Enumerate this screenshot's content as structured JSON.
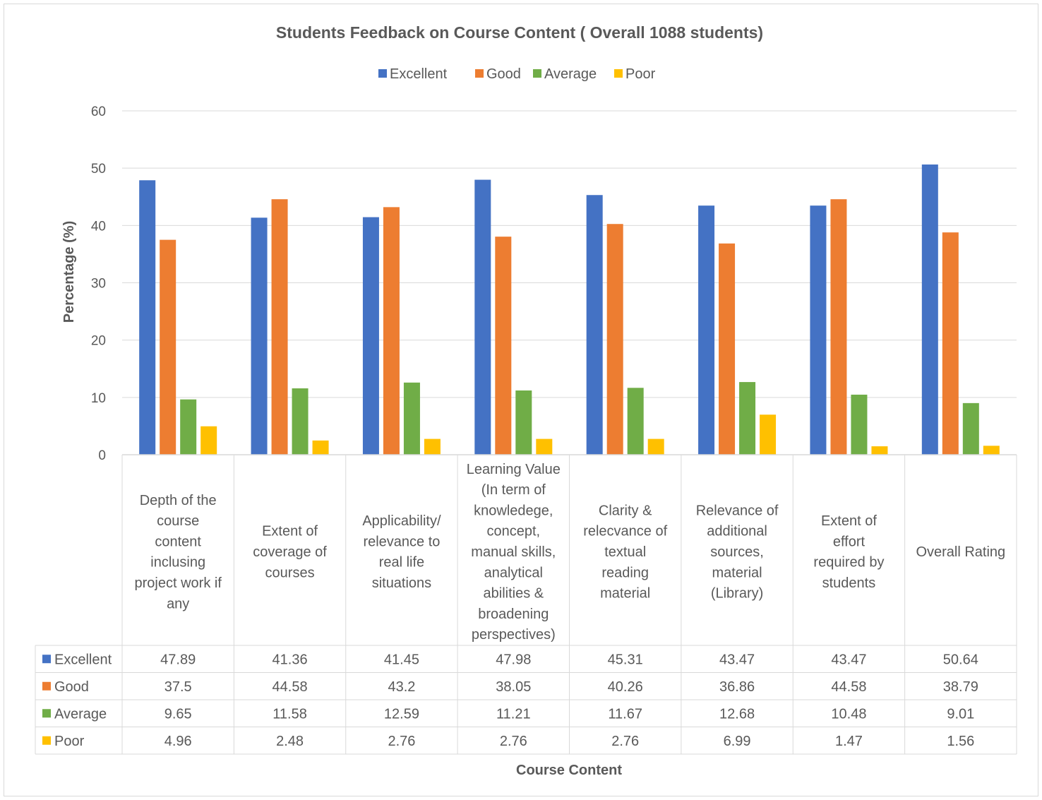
{
  "chart_data": {
    "type": "bar",
    "title": "Students Feedback on Course Content ( Overall 1088 students)",
    "xlabel": "Course Content",
    "ylabel": "Percentage (%)",
    "ylim": [
      0,
      60
    ],
    "yticks": [
      0,
      10,
      20,
      30,
      40,
      50,
      60
    ],
    "grid": true,
    "legend_position": "top",
    "data_table": true,
    "categories": [
      "Depth of the course content inclusing project work if any",
      "Extent of coverage of courses",
      "Applicability/ relevance to real life situations",
      "Learning Value (In term of knowledege, concept, manual skills, analytical abilities & broadening perspectives)",
      "Clarity & relecvance of textual reading material",
      "Relevance of additional sources, material (Library)",
      "Extent of effort required by students",
      "Overall Rating"
    ],
    "category_lines": [
      [
        "Depth of the",
        "course",
        "content",
        "inclusing",
        "project work if",
        "any"
      ],
      [
        "Extent of",
        "coverage of",
        "courses"
      ],
      [
        "Applicability/",
        "relevance to",
        "real life",
        "situations"
      ],
      [
        "Learning Value",
        "(In term of",
        "knowledege,",
        "concept,",
        "manual skills,",
        "analytical",
        "abilities &",
        "broadening",
        "perspectives)"
      ],
      [
        "Clarity &",
        "relecvance of",
        "textual",
        "reading",
        "material"
      ],
      [
        "Relevance of",
        "additional",
        "sources,",
        "material",
        "(Library)"
      ],
      [
        "Extent of",
        "effort",
        "required by",
        "students"
      ],
      [
        "Overall Rating"
      ]
    ],
    "series": [
      {
        "name": "Excellent",
        "color": "#4472C4",
        "values": [
          47.89,
          41.36,
          41.45,
          47.98,
          45.31,
          43.47,
          43.47,
          50.64
        ],
        "labels": [
          "47.89",
          "41.36",
          "41.45",
          "47.98",
          "45.31",
          "43.47",
          "43.47",
          "50.64"
        ]
      },
      {
        "name": "Good",
        "color": "#ED7D31",
        "values": [
          37.5,
          44.58,
          43.2,
          38.05,
          40.26,
          36.86,
          44.58,
          38.79
        ],
        "labels": [
          "37.5",
          "44.58",
          "43.2",
          "38.05",
          "40.26",
          "36.86",
          "44.58",
          "38.79"
        ]
      },
      {
        "name": "Average",
        "color": "#70AD47",
        "values": [
          9.65,
          11.58,
          12.59,
          11.21,
          11.67,
          12.68,
          10.48,
          9.01
        ],
        "labels": [
          "9.65",
          "11.58",
          "12.59",
          "11.21",
          "11.67",
          "12.68",
          "10.48",
          "9.01"
        ]
      },
      {
        "name": "Poor",
        "color": "#FFC000",
        "values": [
          4.96,
          2.48,
          2.76,
          2.76,
          2.76,
          6.99,
          1.47,
          1.56
        ],
        "labels": [
          "4.96",
          "2.48",
          "2.76",
          "2.76",
          "2.76",
          "6.99",
          "1.47",
          "1.56"
        ]
      }
    ]
  }
}
